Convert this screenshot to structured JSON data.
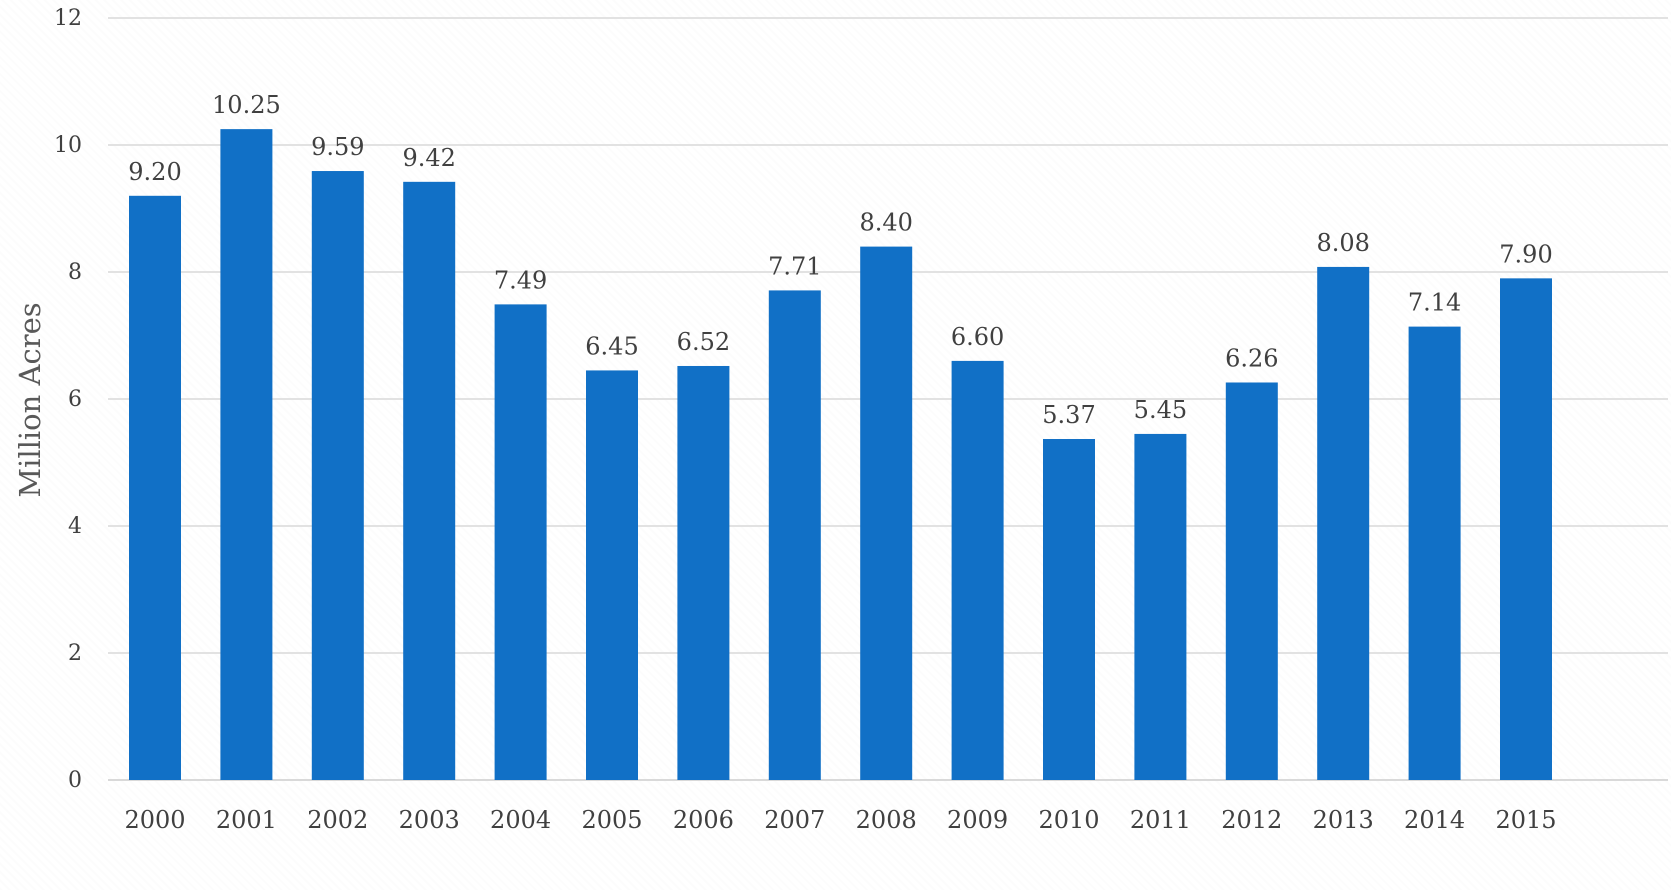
{
  "chart_data": {
    "type": "bar",
    "categories": [
      "2000",
      "2001",
      "2002",
      "2003",
      "2004",
      "2005",
      "2006",
      "2007",
      "2008",
      "2009",
      "2010",
      "2011",
      "2012",
      "2013",
      "2014",
      "2015"
    ],
    "series": [
      {
        "values": [
          9.2,
          10.25,
          9.59,
          9.42,
          7.49,
          6.45,
          6.52,
          7.71,
          8.4,
          6.6,
          5.37,
          5.45,
          6.26,
          8.08,
          7.14,
          7.9
        ],
        "value_labels": [
          "9.20",
          "10.25",
          "9.59",
          "9.42",
          "7.49",
          "6.45",
          "6.52",
          "7.71",
          "8.40",
          "6.60",
          "5.37",
          "5.45",
          "6.26",
          "8.08",
          "7.14",
          "7.90"
        ],
        "color": "#1170c6"
      }
    ],
    "title": "",
    "xlabel": "",
    "ylabel": "Million Acres",
    "ylim": [
      0,
      12
    ],
    "yticks": [
      0,
      2,
      4,
      6,
      8,
      10,
      12
    ],
    "ytick_labels": [
      "0",
      "2",
      "4",
      "6",
      "8",
      "10",
      "12"
    ],
    "grid": true,
    "legend": "none"
  }
}
